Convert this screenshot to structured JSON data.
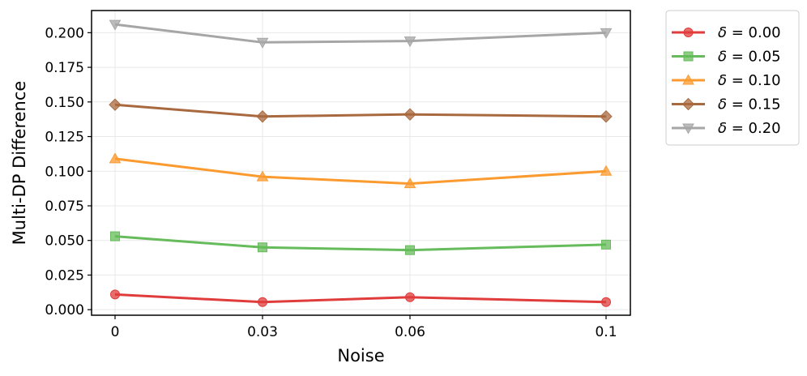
{
  "chart_data": {
    "type": "line",
    "title": "",
    "xlabel": "Noise",
    "ylabel": "Multi-DP Difference",
    "categories": [
      "0",
      "0.03",
      "0.06",
      "0.1"
    ],
    "ylim": [
      -0.004,
      0.216
    ],
    "yticks": [
      "0.000",
      "0.025",
      "0.050",
      "0.075",
      "0.100",
      "0.125",
      "0.150",
      "0.175",
      "0.200"
    ],
    "grid": true,
    "legend_position": "outside-right-top",
    "series": [
      {
        "name": "δ = 0.00",
        "label": "0.00",
        "color": "#e03c3c",
        "marker": "circle",
        "values": [
          0.011,
          0.0055,
          0.009,
          0.0055
        ]
      },
      {
        "name": "δ = 0.05",
        "label": "0.05",
        "color": "#66bb5a",
        "marker": "square",
        "values": [
          0.053,
          0.045,
          0.043,
          0.047
        ]
      },
      {
        "name": "δ = 0.10",
        "label": "0.10",
        "color": "#fb9a2f",
        "marker": "triangle-up",
        "values": [
          0.109,
          0.096,
          0.091,
          0.1
        ]
      },
      {
        "name": "δ = 0.15",
        "label": "0.15",
        "color": "#a9693f",
        "marker": "diamond",
        "values": [
          0.148,
          0.1395,
          0.141,
          0.1395
        ]
      },
      {
        "name": "δ = 0.20",
        "label": "0.20",
        "color": "#a6a6a6",
        "marker": "triangle-down",
        "values": [
          0.206,
          0.193,
          0.194,
          0.2
        ]
      }
    ]
  }
}
